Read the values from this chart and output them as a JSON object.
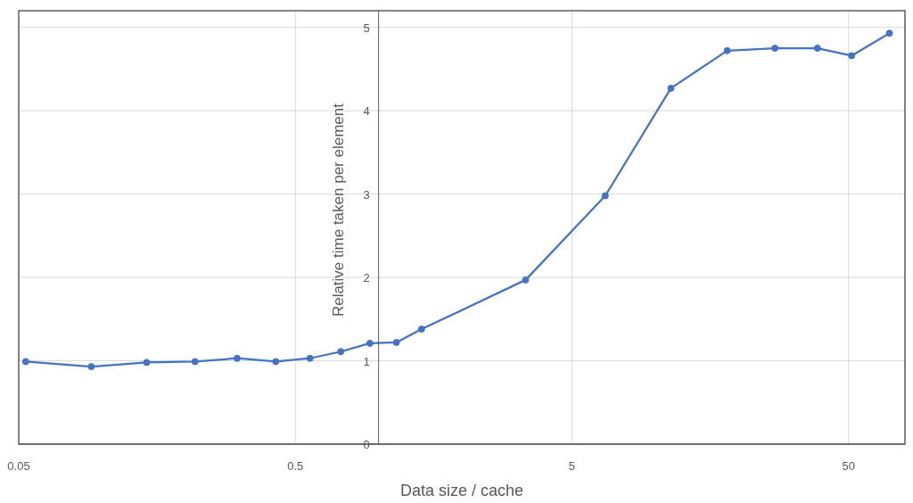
{
  "chart_data": {
    "type": "line",
    "xlabel": "Data size / cache",
    "ylabel": "Relative time taken per element",
    "log": "x",
    "xlim": [
      0.05,
      80
    ],
    "xticks": [
      0.05,
      0.5,
      5,
      50
    ],
    "ylim": [
      0,
      5.2
    ],
    "yticks": [
      0,
      1,
      2,
      3,
      4,
      5
    ],
    "grid": true,
    "marker": "circle",
    "line_style": "solid",
    "series": [
      {
        "color": "#4472c4",
        "x": [
          0.053,
          0.0915,
          0.145,
          0.217,
          0.308,
          0.425,
          0.565,
          0.73,
          0.93,
          1.16,
          1.43,
          3.4,
          6.6,
          11.4,
          18.2,
          27.1,
          38.6,
          51.3,
          70.3
        ],
        "values": [
          0.99,
          0.93,
          0.98,
          0.99,
          1.03,
          0.99,
          1.03,
          1.11,
          1.21,
          1.22,
          1.38,
          1.97,
          2.98,
          4.27,
          4.72,
          4.75,
          4.75,
          4.66,
          4.93
        ]
      }
    ]
  }
}
